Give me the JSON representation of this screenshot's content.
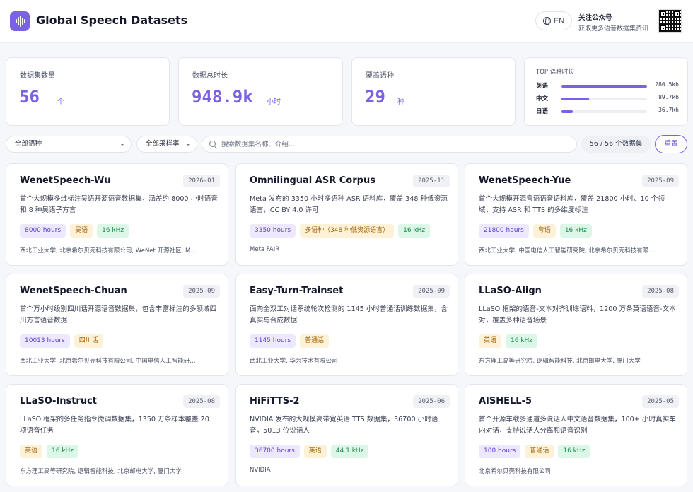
{
  "header": {
    "title": "Global Speech Datasets",
    "lang_button": "EN",
    "follow_title": "关注公众号",
    "follow_subtitle": "获取更多语音数据集资讯"
  },
  "stats": [
    {
      "label": "数据集数量",
      "value": "56",
      "unit": "个"
    },
    {
      "label": "数据总时长",
      "value": "948.9k",
      "unit": "小时"
    },
    {
      "label": "覆盖语种",
      "value": "29",
      "unit": "种"
    }
  ],
  "top_languages": {
    "title": "TOP 语种时长",
    "items": [
      {
        "name": "英语",
        "value": "280.5kh",
        "share": 1.0
      },
      {
        "name": "中文",
        "value": "89.7kh",
        "share": 0.32
      },
      {
        "name": "日语",
        "value": "36.7kh",
        "share": 0.13
      }
    ]
  },
  "filters": {
    "language": "全部语种",
    "sample_rate": "全部采样率",
    "search_placeholder": "搜索数据集名称、介绍...",
    "count": "56 / 56 个数据集",
    "reset": "重置"
  },
  "datasets": [
    {
      "name": "WenetSpeech-Wu",
      "date": "2026-01",
      "desc": "首个大规模多维标注吴语开源语音数据集，涵盖约 8000 小时语音和 8 种吴语子方言",
      "tags": [
        {
          "type": "hours",
          "text": "8000 hours"
        },
        {
          "type": "lang",
          "text": "吴语"
        },
        {
          "type": "rate",
          "text": "16 kHz"
        }
      ],
      "org": "西北工业大学, 北京希尔贝壳科技有限公司, WeNet 开源社区, M..."
    },
    {
      "name": "Omnilingual ASR Corpus",
      "date": "2025-11",
      "desc": "Meta 发布的 3350 小时多语种 ASR 语料库，覆盖 348 种低资源语言，CC BY 4.0 许可",
      "tags": [
        {
          "type": "hours",
          "text": "3350 hours"
        },
        {
          "type": "lang",
          "text": "多语种（348 种低资源语言）"
        },
        {
          "type": "rate",
          "text": "16 kHz"
        }
      ],
      "org": "Meta FAIR"
    },
    {
      "name": "WenetSpeech-Yue",
      "date": "2025-09",
      "desc": "首个大规模开源粤语语音语料库，覆盖 21800 小时、10 个领域，支持 ASR 和 TTS 的多维度标注",
      "tags": [
        {
          "type": "hours",
          "text": "21800 hours"
        },
        {
          "type": "lang",
          "text": "粤语"
        },
        {
          "type": "rate",
          "text": "16 kHz"
        }
      ],
      "org": "西北工业大学, 中国电信人工智能研究院, 北京希尔贝壳科技有限..."
    },
    {
      "name": "WenetSpeech-Chuan",
      "date": "2025-09",
      "desc": "首个万小时级别四川话开源语音数据集，包含丰富标注的多领域四川方言语音数据",
      "tags": [
        {
          "type": "hours",
          "text": "10013 hours"
        },
        {
          "type": "lang",
          "text": "四川话"
        }
      ],
      "org": "西北工业大学, 北京希尔贝壳科技有限公司, 中国电信人工智能研..."
    },
    {
      "name": "Easy-Turn-Trainset",
      "date": "2025-09",
      "desc": "面向全双工对话系统轮次检测的 1145 小时普通话训练数据集，含真实与合成数据",
      "tags": [
        {
          "type": "hours",
          "text": "1145 hours"
        },
        {
          "type": "lang",
          "text": "普通话"
        }
      ],
      "org": "西北工业大学, 华为技术有限公司"
    },
    {
      "name": "LLaSO-Align",
      "date": "2025-08",
      "desc": "LLaSO 框架的语音-文本对齐训练语料，1200 万条英语语音-文本对，覆盖多种语音场景",
      "tags": [
        {
          "type": "lang",
          "text": "英语"
        },
        {
          "type": "rate",
          "text": "16 kHz"
        }
      ],
      "org": "东方理工高等研究院, 逻辑智能科技, 北京邮电大学, 厦门大学"
    },
    {
      "name": "LLaSO-Instruct",
      "date": "2025-08",
      "desc": "LLaSO 框架的多任务指令微调数据集，1350 万条样本覆盖 20 项语音任务",
      "tags": [
        {
          "type": "lang",
          "text": "英语"
        },
        {
          "type": "rate",
          "text": "16 kHz"
        }
      ],
      "org": "东方理工高等研究院, 逻辑智能科技, 北京邮电大学, 厦门大学"
    },
    {
      "name": "HiFiTTS-2",
      "date": "2025-06",
      "desc": "NVIDIA 发布的大规模高带宽英语 TTS 数据集，36700 小时语音，5013 位说话人",
      "tags": [
        {
          "type": "hours",
          "text": "36700 hours"
        },
        {
          "type": "lang",
          "text": "英语"
        },
        {
          "type": "rate",
          "text": "44.1 kHz"
        }
      ],
      "org": "NVIDIA"
    },
    {
      "name": "AISHELL-5",
      "date": "2025-05",
      "desc": "首个开源车载多通道多说话人中文语音数据集，100+ 小时真实车内对话，支持说话人分离和语音识别",
      "tags": [
        {
          "type": "hours",
          "text": "100 hours"
        },
        {
          "type": "lang",
          "text": "普通话"
        },
        {
          "type": "rate",
          "text": "16 kHz"
        }
      ],
      "org": "北京希尔贝壳科技有限公司"
    }
  ]
}
